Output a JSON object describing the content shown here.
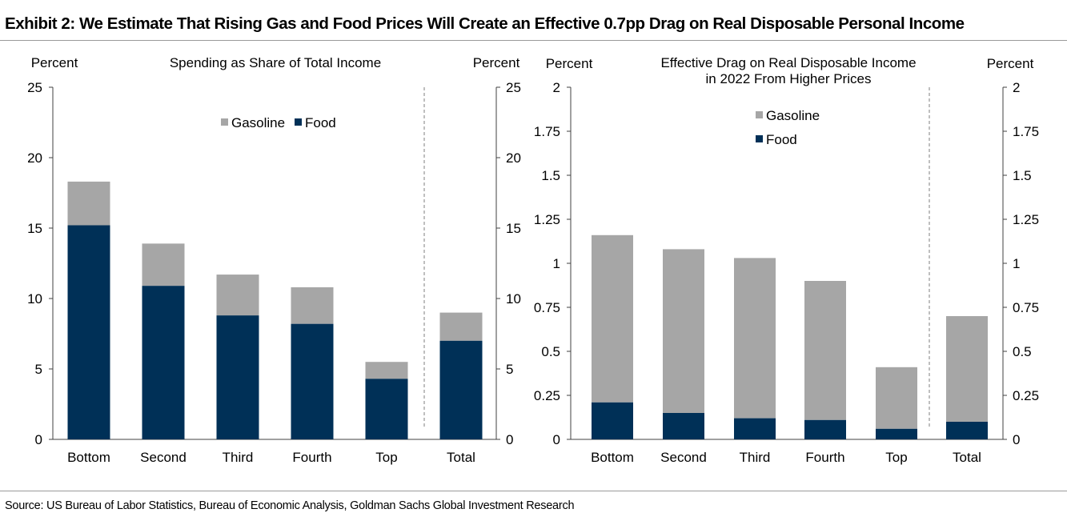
{
  "title": "Exhibit 2: We Estimate That Rising Gas and Food Prices Will Create an Effective 0.7pp Drag on Real Disposable Personal Income",
  "source": "Source: US Bureau of Labor Statistics, Bureau of Economic Analysis, Goldman Sachs Global Investment Research",
  "colors": {
    "gasoline": "#a6a6a6",
    "food": "#003057"
  },
  "chart_data": [
    {
      "type": "bar",
      "stacked": true,
      "title": "Spending as Share of Total Income",
      "ylabel_left": "Percent",
      "ylabel_right": "Percent",
      "categories": [
        "Bottom",
        "Second",
        "Third",
        "Fourth",
        "Top",
        "Total"
      ],
      "ylim": [
        0,
        25
      ],
      "yticks": [
        "0",
        "5",
        "10",
        "15",
        "20",
        "25"
      ],
      "series": [
        {
          "name": "Food",
          "values": [
            15.2,
            10.9,
            8.8,
            8.2,
            4.3,
            7.0
          ]
        },
        {
          "name": "Gasoline",
          "values": [
            3.1,
            3.0,
            2.9,
            2.6,
            1.2,
            2.0
          ]
        }
      ],
      "legend": [
        "Gasoline",
        "Food"
      ],
      "legend_position": "top-center",
      "grid": false,
      "separator_before": "Total"
    },
    {
      "type": "bar",
      "stacked": true,
      "title_lines": [
        "Effective Drag on Real Disposable Income",
        "in 2022 From Higher Prices"
      ],
      "ylabel_left": "Percent",
      "ylabel_right": "Percent",
      "categories": [
        "Bottom",
        "Second",
        "Third",
        "Fourth",
        "Top",
        "Total"
      ],
      "ylim": [
        0,
        2
      ],
      "yticks": [
        "0",
        "0.25",
        "0.5",
        "0.75",
        "1",
        "1.25",
        "1.5",
        "1.75",
        "2"
      ],
      "series": [
        {
          "name": "Food",
          "values": [
            0.21,
            0.15,
            0.12,
            0.11,
            0.06,
            0.1
          ]
        },
        {
          "name": "Gasoline",
          "values": [
            0.95,
            0.93,
            0.91,
            0.79,
            0.35,
            0.6
          ]
        }
      ],
      "legend": [
        "Gasoline",
        "Food"
      ],
      "legend_position": "top-center",
      "grid": false,
      "separator_before": "Total"
    }
  ]
}
